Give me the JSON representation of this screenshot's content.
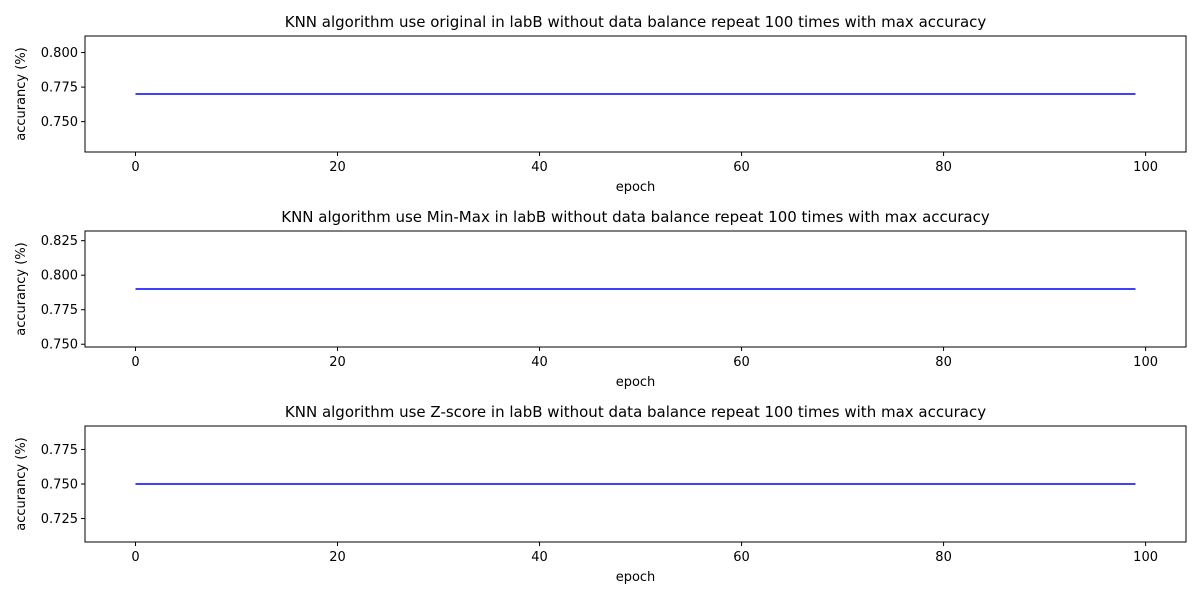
{
  "chart_data": [
    {
      "type": "line",
      "title": "KNN algorithm use original in labB without data balance repeat 100 times with max accuracy",
      "xlabel": "epoch",
      "ylabel": "accurancy (%)",
      "xlim": [
        -5,
        104
      ],
      "ylim": [
        0.728,
        0.812
      ],
      "xticks": [
        0,
        20,
        40,
        60,
        80,
        100
      ],
      "yticks": [
        0.75,
        0.775,
        0.8
      ],
      "ytick_labels": [
        "0.750",
        "0.775",
        "0.800"
      ],
      "x": [
        0,
        99
      ],
      "series": [
        {
          "values": [
            0.77,
            0.77
          ],
          "color": "#0000ff"
        }
      ],
      "grid": false
    },
    {
      "type": "line",
      "title": "KNN algorithm use Min-Max in labB without data balance repeat 100 times with max accuracy",
      "xlabel": "epoch",
      "ylabel": "accurancy (%)",
      "xlim": [
        -5,
        104
      ],
      "ylim": [
        0.748,
        0.832
      ],
      "xticks": [
        0,
        20,
        40,
        60,
        80,
        100
      ],
      "yticks": [
        0.75,
        0.775,
        0.8,
        0.825
      ],
      "ytick_labels": [
        "0.750",
        "0.775",
        "0.800",
        "0.825"
      ],
      "x": [
        0,
        99
      ],
      "series": [
        {
          "values": [
            0.79,
            0.79
          ],
          "color": "#0000ff"
        }
      ],
      "grid": false
    },
    {
      "type": "line",
      "title": "KNN algorithm use Z-score in labB without data balance repeat 100 times with max accuracy",
      "xlabel": "epoch",
      "ylabel": "accurancy (%)",
      "xlim": [
        -5,
        104
      ],
      "ylim": [
        0.708,
        0.792
      ],
      "xticks": [
        0,
        20,
        40,
        60,
        80,
        100
      ],
      "yticks": [
        0.725,
        0.75,
        0.775
      ],
      "ytick_labels": [
        "0.725",
        "0.750",
        "0.775"
      ],
      "x": [
        0,
        99
      ],
      "series": [
        {
          "values": [
            0.75,
            0.75
          ],
          "color": "#0000ff"
        }
      ],
      "grid": false
    }
  ]
}
